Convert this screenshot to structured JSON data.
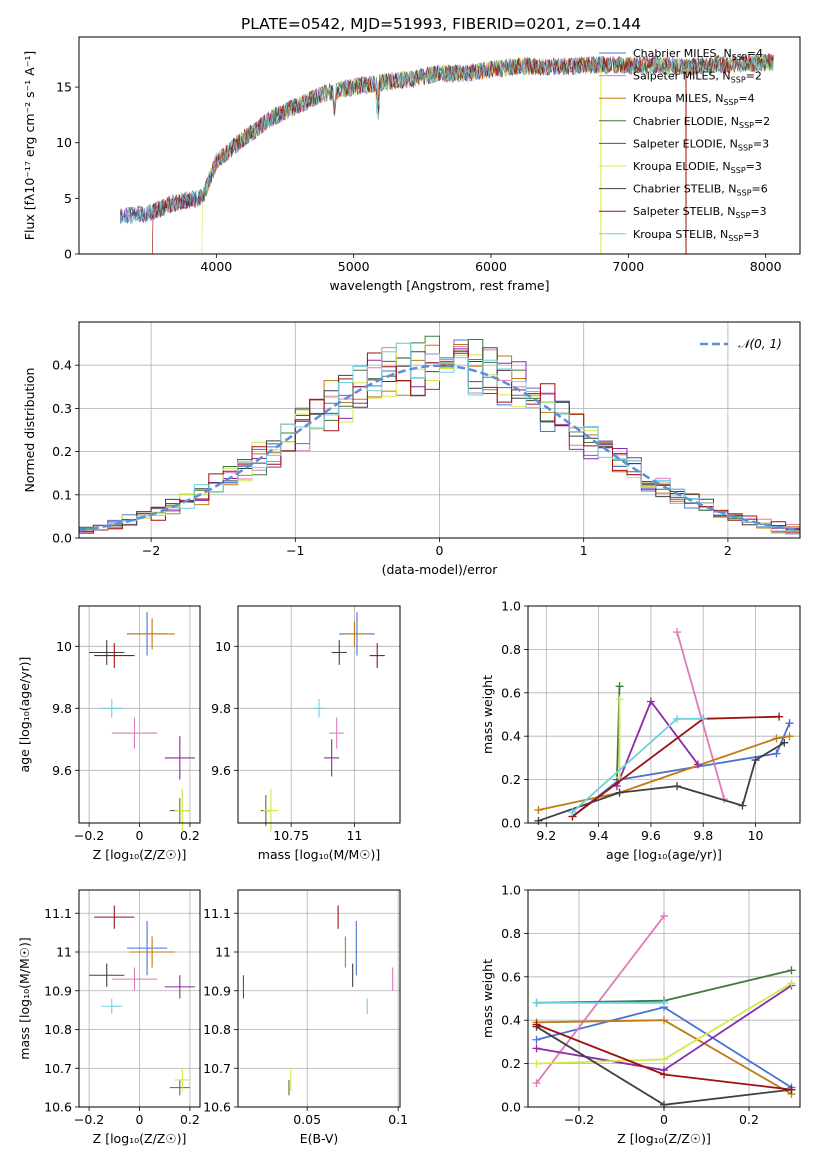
{
  "figure_title": "PLATE=0542, MJD=51993, FIBERID=0201, z=0.144",
  "series_colors": {
    "Chabrier MILES": "#4c72d0",
    "Salpeter MILES": "#e07ab8",
    "Kroupa MILES": "#c07a12",
    "Chabrier ELODIE": "#3f7a3f",
    "Salpeter ELODIE": "#8c2aa8",
    "Kroupa ELODIE": "#d4e84a",
    "Chabrier STELIB": "#404040",
    "Salpeter STELIB": "#a01010",
    "Kroupa STELIB": "#6fd0e0"
  },
  "chart_data": [
    {
      "panel": "spectrum",
      "type": "line",
      "title": "PLATE=0542, MJD=51993, FIBERID=0201, z=0.144",
      "xlabel": "wavelength [Angstrom, rest frame]",
      "ylabel": "Flux [fλ10⁻¹⁷ erg cm⁻² s⁻¹ A⁻¹]",
      "xlim": [
        3000,
        8250
      ],
      "ylim": [
        0,
        19.5
      ],
      "xticks": [
        4000,
        5000,
        6000,
        7000,
        8000
      ],
      "yticks": [
        0,
        5,
        10,
        15
      ],
      "grid": false,
      "legend_position": "upper right",
      "legend": [
        {
          "label": "Chabrier MILES, N_SSP=4",
          "text": "Chabrier MILES, N",
          "sub": "SSP",
          "tail": "=4",
          "color": "#4c72d0"
        },
        {
          "label": "Salpeter MILES, N_SSP=2",
          "text": "Salpeter MILES, N",
          "sub": "SSP",
          "tail": "=2",
          "color": "#e07ab8"
        },
        {
          "label": "Kroupa MILES, N_SSP=4",
          "text": "Kroupa MILES, N",
          "sub": "SSP",
          "tail": "=4",
          "color": "#c07a12"
        },
        {
          "label": "Chabrier ELODIE, N_SSP=2",
          "text": "Chabrier ELODIE, N",
          "sub": "SSP",
          "tail": "=2",
          "color": "#3f7a3f"
        },
        {
          "label": "Salpeter ELODIE, N_SSP=3",
          "text": "Salpeter ELODIE, N",
          "sub": "SSP",
          "tail": "=3",
          "color": "#8c2aa8"
        },
        {
          "label": "Kroupa ELODIE, N_SSP=3",
          "text": "Kroupa ELODIE, N",
          "sub": "SSP",
          "tail": "=3",
          "color": "#d4e84a"
        },
        {
          "label": "Chabrier STELIB, N_SSP=6",
          "text": "Chabrier STELIB, N",
          "sub": "SSP",
          "tail": "=6",
          "color": "#404040"
        },
        {
          "label": "Salpeter STELIB, N_SSP=3",
          "text": "Salpeter STELIB, N",
          "sub": "SSP",
          "tail": "=3",
          "color": "#a01010"
        },
        {
          "label": "Kroupa STELIB, N_SSP=3",
          "text": "Kroupa STELIB, N",
          "sub": "SSP",
          "tail": "=3",
          "color": "#6fd0e0"
        }
      ],
      "continuum": {
        "x": [
          3300,
          3500,
          3700,
          3900,
          4000,
          4200,
          4400,
          4600,
          4800,
          5000,
          5200,
          5400,
          5600,
          5800,
          6000,
          6200,
          6400,
          6600,
          6800,
          7000,
          7200,
          7400,
          7600,
          7800,
          8000
        ],
        "y": [
          3.4,
          3.6,
          4.6,
          5.1,
          8.3,
          10.4,
          12.2,
          13.4,
          14.5,
          15.0,
          15.4,
          15.7,
          16.2,
          16.2,
          16.6,
          16.9,
          16.8,
          16.9,
          17.0,
          16.9,
          17.0,
          16.8,
          17.0,
          17.1,
          17.2
        ]
      },
      "model_cutoffs": [
        {
          "series": "Kroupa MILES",
          "lo": 3540,
          "hi": 7420
        },
        {
          "series": "Kroupa ELODIE",
          "lo": 3900,
          "hi": 6800
        },
        {
          "series": "Salpeter STELIB",
          "lo": 3540,
          "hi": 7420
        }
      ]
    },
    {
      "panel": "residual_distribution",
      "type": "line",
      "xlabel": "(data-model)/error",
      "ylabel": "Normed distribution",
      "xlim": [
        -2.5,
        2.5
      ],
      "ylim": [
        0,
        0.5
      ],
      "xticks": [
        -2,
        -1,
        0,
        1,
        2
      ],
      "yticks": [
        0.0,
        0.1,
        0.2,
        0.3,
        0.4
      ],
      "grid": true,
      "legend_position": "upper right",
      "reference": {
        "label": "𝒩(0, 1)",
        "mu": 0,
        "sigma": 1,
        "color": "#5b8fd8"
      },
      "histogram_bins": 50
    },
    {
      "panel": "age_vs_Z",
      "type": "scatter",
      "xlabel": "Z [log₁₀(Z/Z☉)]",
      "ylabel": "age  [log₁₀(age/yr)]",
      "xlim": [
        -0.24,
        0.24
      ],
      "ylim": [
        9.43,
        10.13
      ],
      "xticks": [
        -0.2,
        0.0,
        0.2
      ],
      "yticks": [
        9.6,
        9.8,
        10.0
      ],
      "grid": true,
      "points": [
        {
          "series": "Chabrier MILES",
          "x": 0.03,
          "y": 10.04,
          "xerr": 0.08,
          "yerr": 0.07
        },
        {
          "series": "Salpeter MILES",
          "x": -0.02,
          "y": 9.72,
          "xerr": 0.09,
          "yerr": 0.05
        },
        {
          "series": "Kroupa MILES",
          "x": 0.05,
          "y": 10.04,
          "xerr": 0.09,
          "yerr": 0.05
        },
        {
          "series": "Chabrier ELODIE",
          "x": 0.16,
          "y": 9.47,
          "xerr": 0.04,
          "yerr": 0.04
        },
        {
          "series": "Salpeter ELODIE",
          "x": 0.16,
          "y": 9.64,
          "xerr": 0.06,
          "yerr": 0.07
        },
        {
          "series": "Kroupa ELODIE",
          "x": 0.17,
          "y": 9.47,
          "xerr": 0.03,
          "yerr": 0.07
        },
        {
          "series": "Chabrier STELIB",
          "x": -0.13,
          "y": 9.98,
          "xerr": 0.07,
          "yerr": 0.04
        },
        {
          "series": "Salpeter STELIB",
          "x": -0.1,
          "y": 9.97,
          "xerr": 0.08,
          "yerr": 0.04
        },
        {
          "series": "Kroupa STELIB",
          "x": -0.11,
          "y": 9.8,
          "xerr": 0.04,
          "yerr": 0.03
        }
      ]
    },
    {
      "panel": "age_vs_mass",
      "type": "scatter",
      "xlabel": "mass [log₁₀(M/M☉)]",
      "ylabel": "",
      "xlim": [
        10.54,
        11.18
      ],
      "ylim": [
        9.43,
        10.13
      ],
      "xticks": [
        10.75,
        11.0
      ],
      "yticks": [
        9.6,
        9.8,
        10.0
      ],
      "grid": true,
      "points": [
        {
          "series": "Chabrier MILES",
          "x": 11.01,
          "y": 10.04,
          "xerr": 0.07,
          "yerr": 0.07
        },
        {
          "series": "Salpeter MILES",
          "x": 10.93,
          "y": 9.72,
          "xerr": 0.03,
          "yerr": 0.05
        },
        {
          "series": "Kroupa MILES",
          "x": 11.0,
          "y": 10.04,
          "xerr": 0.04,
          "yerr": 0.04
        },
        {
          "series": "Chabrier ELODIE",
          "x": 10.65,
          "y": 9.47,
          "xerr": 0.02,
          "yerr": 0.05
        },
        {
          "series": "Salpeter ELODIE",
          "x": 10.91,
          "y": 9.64,
          "xerr": 0.03,
          "yerr": 0.06
        },
        {
          "series": "Kroupa ELODIE",
          "x": 10.67,
          "y": 9.47,
          "xerr": 0.03,
          "yerr": 0.07
        },
        {
          "series": "Chabrier STELIB",
          "x": 10.94,
          "y": 9.98,
          "xerr": 0.03,
          "yerr": 0.04
        },
        {
          "series": "Salpeter STELIB",
          "x": 11.09,
          "y": 9.97,
          "xerr": 0.03,
          "yerr": 0.04
        },
        {
          "series": "Kroupa STELIB",
          "x": 10.86,
          "y": 9.8,
          "xerr": 0.02,
          "yerr": 0.03
        }
      ]
    },
    {
      "panel": "mass_weight_vs_age",
      "type": "line",
      "xlabel": "age  [log₁₀(age/yr)]",
      "ylabel": "mass weight",
      "xlim": [
        9.13,
        10.17
      ],
      "ylim": [
        0,
        1
      ],
      "xticks": [
        9.2,
        9.4,
        9.6,
        9.8,
        10.0
      ],
      "yticks": [
        0.0,
        0.2,
        0.4,
        0.6,
        0.8,
        1.0
      ],
      "grid": true,
      "series": [
        {
          "name": "Chabrier MILES",
          "x": [
            9.3,
            9.48,
            10.08,
            10.13
          ],
          "y": [
            0.03,
            0.2,
            0.32,
            0.46
          ]
        },
        {
          "name": "Salpeter MILES",
          "x": [
            9.7,
            9.88
          ],
          "y": [
            0.88,
            0.11
          ]
        },
        {
          "name": "Kroupa MILES",
          "x": [
            9.17,
            9.48,
            10.08,
            10.13
          ],
          "y": [
            0.06,
            0.14,
            0.39,
            0.4
          ]
        },
        {
          "name": "Chabrier ELODIE",
          "x": [
            9.47,
            9.48
          ],
          "y": [
            0.2,
            0.63
          ]
        },
        {
          "name": "Salpeter ELODIE",
          "x": [
            9.47,
            9.6,
            9.78
          ],
          "y": [
            0.17,
            0.56,
            0.27
          ]
        },
        {
          "name": "Kroupa ELODIE",
          "x": [
            9.48,
            9.48
          ],
          "y": [
            0.57,
            0.21
          ]
        },
        {
          "name": "Chabrier STELIB",
          "x": [
            9.17,
            9.48,
            9.7,
            9.95,
            10.0,
            10.11
          ],
          "y": [
            0.01,
            0.14,
            0.17,
            0.08,
            0.29,
            0.37
          ]
        },
        {
          "name": "Salpeter STELIB",
          "x": [
            9.3,
            9.8,
            10.09
          ],
          "y": [
            0.03,
            0.48,
            0.49
          ]
        },
        {
          "name": "Kroupa STELIB",
          "x": [
            9.3,
            9.7,
            9.8
          ],
          "y": [
            0.05,
            0.48,
            0.48
          ]
        }
      ]
    },
    {
      "panel": "mass_vs_Z",
      "type": "scatter",
      "xlabel": "Z [log₁₀(Z/Z☉)]",
      "ylabel": "mass [log₁₀(M/M☉)]",
      "xlim": [
        -0.24,
        0.24
      ],
      "ylim": [
        10.6,
        11.16
      ],
      "xticks": [
        -0.2,
        0.0,
        0.2
      ],
      "yticks": [
        10.6,
        10.7,
        10.8,
        10.9,
        11.0,
        11.1
      ],
      "grid": true,
      "points": [
        {
          "series": "Chabrier MILES",
          "x": 0.03,
          "y": 11.01,
          "xerr": 0.08,
          "yerr": 0.07
        },
        {
          "series": "Salpeter MILES",
          "x": -0.02,
          "y": 10.93,
          "xerr": 0.09,
          "yerr": 0.03
        },
        {
          "series": "Kroupa MILES",
          "x": 0.05,
          "y": 11.0,
          "xerr": 0.09,
          "yerr": 0.04
        },
        {
          "series": "Chabrier ELODIE",
          "x": 0.16,
          "y": 10.65,
          "xerr": 0.04,
          "yerr": 0.02
        },
        {
          "series": "Salpeter ELODIE",
          "x": 0.16,
          "y": 10.91,
          "xerr": 0.06,
          "yerr": 0.03
        },
        {
          "series": "Kroupa ELODIE",
          "x": 0.17,
          "y": 10.67,
          "xerr": 0.03,
          "yerr": 0.03
        },
        {
          "series": "Chabrier STELIB",
          "x": -0.13,
          "y": 10.94,
          "xerr": 0.07,
          "yerr": 0.03
        },
        {
          "series": "Salpeter STELIB",
          "x": -0.1,
          "y": 11.09,
          "xerr": 0.08,
          "yerr": 0.03
        },
        {
          "series": "Kroupa STELIB",
          "x": -0.11,
          "y": 10.86,
          "xerr": 0.04,
          "yerr": 0.02
        }
      ]
    },
    {
      "panel": "mass_vs_EBV",
      "type": "scatter",
      "xlabel": "E(B-V)",
      "ylabel": "",
      "xlim": [
        0.012,
        0.101
      ],
      "ylim": [
        10.6,
        11.16
      ],
      "xticks": [
        0.05,
        0.1
      ],
      "yticks": [
        10.6,
        10.7,
        10.8,
        10.9,
        11.0,
        11.1
      ],
      "grid": true,
      "points": [
        {
          "series": "Chabrier MILES",
          "x": 0.077,
          "y": 11.01,
          "yerr": 0.07
        },
        {
          "series": "Salpeter MILES",
          "x": 0.097,
          "y": 10.93,
          "yerr": 0.03
        },
        {
          "series": "Kroupa MILES",
          "x": 0.071,
          "y": 11.0,
          "yerr": 0.04
        },
        {
          "series": "Chabrier ELODIE",
          "x": 0.04,
          "y": 10.65,
          "yerr": 0.02
        },
        {
          "series": "Salpeter ELODIE",
          "x": 0.015,
          "y": 10.91,
          "yerr": 0.03
        },
        {
          "series": "Kroupa ELODIE",
          "x": 0.041,
          "y": 10.67,
          "yerr": 0.03
        },
        {
          "series": "Chabrier STELIB",
          "x": 0.075,
          "y": 10.94,
          "yerr": 0.03
        },
        {
          "series": "Salpeter STELIB",
          "x": 0.067,
          "y": 11.09,
          "yerr": 0.03
        },
        {
          "series": "Kroupa STELIB",
          "x": 0.083,
          "y": 10.86,
          "yerr": 0.02
        }
      ]
    },
    {
      "panel": "mass_weight_vs_Z",
      "type": "line",
      "xlabel": "Z [log₁₀(Z/Z☉)]",
      "ylabel": "mass weight",
      "xlim": [
        -0.32,
        0.32
      ],
      "ylim": [
        0,
        1
      ],
      "xticks": [
        -0.2,
        0.0,
        0.2
      ],
      "yticks": [
        0.0,
        0.2,
        0.4,
        0.6,
        0.8,
        1.0
      ],
      "grid": true,
      "series": [
        {
          "name": "Chabrier MILES",
          "x": [
            -0.3,
            0.0,
            0.3
          ],
          "y": [
            0.31,
            0.46,
            0.09
          ]
        },
        {
          "name": "Salpeter MILES",
          "x": [
            -0.3,
            0.0
          ],
          "y": [
            0.11,
            0.88
          ]
        },
        {
          "name": "Kroupa MILES",
          "x": [
            -0.3,
            0.0,
            0.3
          ],
          "y": [
            0.39,
            0.4,
            0.06
          ]
        },
        {
          "name": "Chabrier ELODIE",
          "x": [
            -0.3,
            0.0,
            0.3
          ],
          "y": [
            0.48,
            0.49,
            0.63
          ]
        },
        {
          "name": "Salpeter ELODIE",
          "x": [
            -0.3,
            0.0,
            0.3
          ],
          "y": [
            0.27,
            0.17,
            0.56
          ]
        },
        {
          "name": "Kroupa ELODIE",
          "x": [
            -0.3,
            0.0,
            0.3
          ],
          "y": [
            0.2,
            0.22,
            0.57
          ]
        },
        {
          "name": "Chabrier STELIB",
          "x": [
            -0.3,
            0.0,
            0.3
          ],
          "y": [
            0.37,
            0.01,
            0.08
          ]
        },
        {
          "name": "Salpeter STELIB",
          "x": [
            -0.3,
            0.0,
            0.3
          ],
          "y": [
            0.38,
            0.15,
            0.08
          ]
        },
        {
          "name": "Kroupa STELIB",
          "x": [
            -0.3,
            0.0
          ],
          "y": [
            0.48,
            0.48
          ]
        }
      ]
    }
  ]
}
